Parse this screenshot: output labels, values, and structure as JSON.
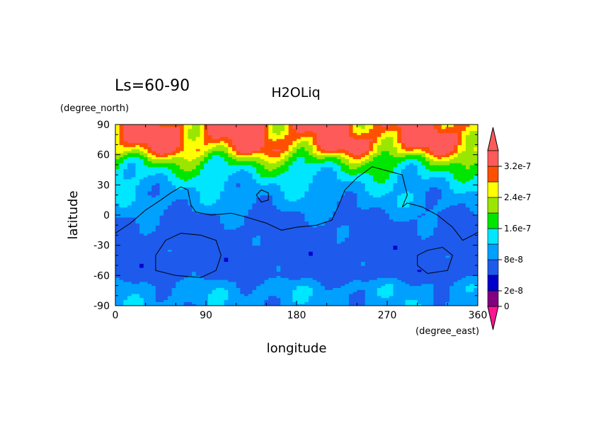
{
  "chart_data": {
    "type": "heatmap",
    "title": "H2OLiq",
    "subtitle": "Ls=60-90",
    "xlabel": "longitude",
    "ylabel": "latitude",
    "xunit": "(degree_east)",
    "yunit": "(degree_north)",
    "xlim": [
      0,
      360
    ],
    "ylim": [
      -90,
      90
    ],
    "xticks": [
      "0",
      "90",
      "180",
      "270",
      "360"
    ],
    "yticks": [
      "90",
      "60",
      "30",
      "0",
      "-30",
      "-60",
      "-90"
    ],
    "colorbar": {
      "levels": [
        0,
        2e-08,
        4e-08,
        8e-08,
        1.2e-07,
        1.6e-07,
        2e-07,
        2.4e-07,
        2.8e-07,
        3.2e-07
      ],
      "colors": [
        "#800080",
        "#0000cd",
        "#1e5aeb",
        "#00a0ff",
        "#00e6ff",
        "#00e600",
        "#9be600",
        "#ffff00",
        "#ff5000",
        "#ff5a5a"
      ],
      "under_color": "#ff1493",
      "over_color": "#ff5a5a",
      "labels": [
        "0",
        "2e-8",
        "8e-8",
        "1.6e-7",
        "2.4e-7",
        "3.2e-7"
      ],
      "label_values": [
        0,
        2e-08,
        8e-08,
        1.6e-07,
        2.4e-07,
        3.2e-07
      ]
    },
    "latitude_profile": [
      {
        "lat": -90,
        "value": 1e-07
      },
      {
        "lat": -75,
        "value": 1e-07
      },
      {
        "lat": -70,
        "value": 9.5e-08
      },
      {
        "lat": -60,
        "value": 6e-08
      },
      {
        "lat": -45,
        "value": 6e-08
      },
      {
        "lat": -30,
        "value": 6e-08
      },
      {
        "lat": -15,
        "value": 6.5e-08
      },
      {
        "lat": 0,
        "value": 7.5e-08
      },
      {
        "lat": 10,
        "value": 9.5e-08
      },
      {
        "lat": 20,
        "value": 1.05e-07
      },
      {
        "lat": 30,
        "value": 1.15e-07
      },
      {
        "lat": 40,
        "value": 1.4e-07
      },
      {
        "lat": 50,
        "value": 1.7e-07
      },
      {
        "lat": 58,
        "value": 2.2e-07
      },
      {
        "lat": 65,
        "value": 2.9e-07
      },
      {
        "lat": 75,
        "value": 3.3e-07
      },
      {
        "lat": 90,
        "value": 3.3e-07
      }
    ],
    "contours": [
      [
        [
          0,
          -18
        ],
        [
          15,
          -8
        ],
        [
          30,
          5
        ],
        [
          45,
          15
        ],
        [
          55,
          22
        ],
        [
          65,
          28
        ],
        [
          72,
          25
        ],
        [
          75,
          10
        ],
        [
          80,
          3
        ],
        [
          95,
          0
        ],
        [
          115,
          2
        ],
        [
          130,
          -2
        ],
        [
          150,
          -8
        ],
        [
          165,
          -15
        ],
        [
          180,
          -12
        ],
        [
          200,
          -10
        ],
        [
          215,
          -5
        ],
        [
          222,
          10
        ],
        [
          228,
          25
        ],
        [
          240,
          37
        ],
        [
          255,
          48
        ],
        [
          270,
          44
        ],
        [
          285,
          40
        ],
        [
          290,
          20
        ],
        [
          285,
          8
        ],
        [
          290,
          12
        ],
        [
          305,
          8
        ],
        [
          320,
          0
        ],
        [
          335,
          -12
        ],
        [
          345,
          -25
        ],
        [
          355,
          -20
        ],
        [
          360,
          -17
        ]
      ],
      [
        [
          40,
          -40
        ],
        [
          50,
          -25
        ],
        [
          65,
          -18
        ],
        [
          85,
          -20
        ],
        [
          100,
          -25
        ],
        [
          105,
          -40
        ],
        [
          100,
          -55
        ],
        [
          85,
          -62
        ],
        [
          60,
          -60
        ],
        [
          40,
          -55
        ],
        [
          40,
          -40
        ]
      ],
      [
        [
          300,
          -40
        ],
        [
          310,
          -35
        ],
        [
          325,
          -32
        ],
        [
          335,
          -40
        ],
        [
          330,
          -55
        ],
        [
          310,
          -58
        ],
        [
          300,
          -50
        ],
        [
          300,
          -40
        ]
      ],
      [
        [
          140,
          20
        ],
        [
          145,
          25
        ],
        [
          152,
          22
        ],
        [
          152,
          15
        ],
        [
          145,
          13
        ],
        [
          140,
          20
        ]
      ]
    ]
  }
}
